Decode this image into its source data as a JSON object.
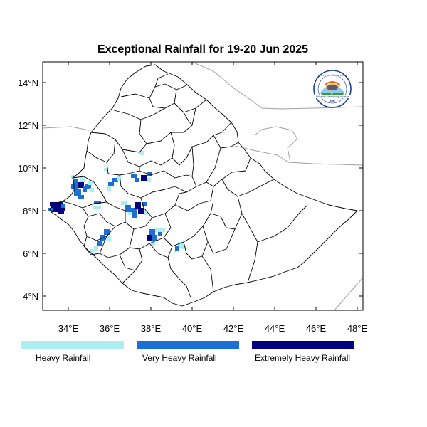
{
  "title": "Exceptional Rainfall for 19-20 Jun 2025",
  "map": {
    "lon_range": [
      32.8,
      48.2
    ],
    "lat_range": [
      3.2,
      15.2
    ],
    "x_ticks": [
      "34°E",
      "36°E",
      "38°E",
      "40°E",
      "42°E",
      "44°E",
      "46°E",
      "48°E"
    ],
    "x_tick_values": [
      34,
      36,
      38,
      40,
      42,
      44,
      46,
      48
    ],
    "y_ticks": [
      "14°N",
      "12°N",
      "10°N",
      "8°N",
      "6°N",
      "4°N"
    ],
    "y_tick_values": [
      14,
      12,
      10,
      8,
      6,
      4
    ]
  },
  "legend": [
    {
      "key": "heavy",
      "label": "Heavy Rainfall",
      "color": "#aeeeee"
    },
    {
      "key": "very_heavy",
      "label": "Very Heavy Rainfall",
      "color": "#1c6fd4"
    },
    {
      "key": "extreme",
      "label": "Extremely Heavy Rainfall",
      "color": "#000080"
    }
  ],
  "colors": {
    "country_border": "#000000",
    "neighbor_border": "#a0a0a0",
    "frame": "#000000"
  },
  "logo": {
    "icon": "ethiopian-meteorology-institute-logo",
    "text_top": "የኢትዮጵያ ሚቲዮሮሎጂ ኢንስቲትዩት",
    "text_bottom": "Ethiopian Meteorology Institute",
    "text_abbr": "EMI"
  }
}
